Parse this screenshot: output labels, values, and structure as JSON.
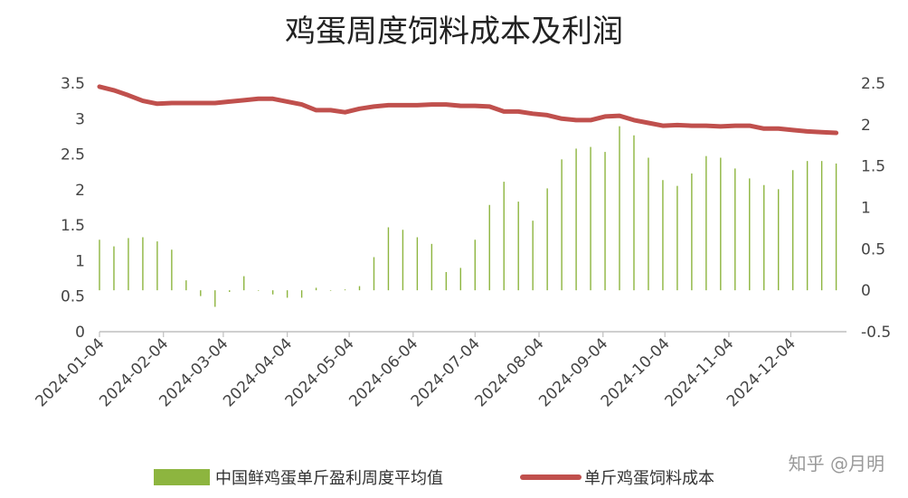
{
  "chart_data": {
    "type": "bar+line",
    "title": "鸡蛋周度饲料成本及利润",
    "x_tick_labels": [
      "2024-01-04",
      "2024-02-04",
      "2024-03-04",
      "2024-04-04",
      "2024-05-04",
      "2024-06-04",
      "2024-07-04",
      "2024-08-04",
      "2024-09-04",
      "2024-10-04",
      "2024-11-04",
      "2024-12-04"
    ],
    "left_axis": {
      "ticks": [
        "0",
        "0.5",
        "1",
        "1.5",
        "2",
        "2.5",
        "3",
        "3.5"
      ],
      "ylim": [
        0,
        3.5
      ]
    },
    "right_axis": {
      "ticks": [
        "-0.5",
        "0",
        "0.5",
        "1",
        "1.5",
        "2",
        "2.5"
      ],
      "ylim": [
        -0.5,
        2.5
      ]
    },
    "x": [
      "2024-01-04",
      "2024-01-11",
      "2024-01-18",
      "2024-01-25",
      "2024-02-01",
      "2024-02-08",
      "2024-02-15",
      "2024-02-22",
      "2024-02-29",
      "2024-03-07",
      "2024-03-14",
      "2024-03-21",
      "2024-03-28",
      "2024-04-04",
      "2024-04-11",
      "2024-04-18",
      "2024-04-25",
      "2024-05-02",
      "2024-05-09",
      "2024-05-16",
      "2024-05-23",
      "2024-05-30",
      "2024-06-06",
      "2024-06-13",
      "2024-06-20",
      "2024-06-27",
      "2024-07-04",
      "2024-07-11",
      "2024-07-18",
      "2024-07-25",
      "2024-08-01",
      "2024-08-08",
      "2024-08-15",
      "2024-08-22",
      "2024-08-29",
      "2024-09-05",
      "2024-09-12",
      "2024-09-19",
      "2024-09-26",
      "2024-10-03",
      "2024-10-10",
      "2024-10-17",
      "2024-10-24",
      "2024-10-31",
      "2024-11-07",
      "2024-11-14",
      "2024-11-21",
      "2024-11-28",
      "2024-12-05",
      "2024-12-12",
      "2024-12-19",
      "2024-12-26"
    ],
    "series": [
      {
        "name": "中国鲜鸡蛋单斤盈利周度平均值",
        "type": "bar",
        "axis": "right",
        "color": "#8db53f",
        "values": [
          0.61,
          0.53,
          0.63,
          0.64,
          0.59,
          0.49,
          0.12,
          -0.07,
          -0.2,
          -0.02,
          0.17,
          0.0,
          -0.05,
          -0.09,
          -0.09,
          0.03,
          0.0,
          0.01,
          0.05,
          0.4,
          0.76,
          0.73,
          0.64,
          0.56,
          0.22,
          0.27,
          0.61,
          1.03,
          1.31,
          1.07,
          0.84,
          1.23,
          1.58,
          1.71,
          1.73,
          1.67,
          1.98,
          1.87,
          1.6,
          1.33,
          1.26,
          1.41,
          1.62,
          1.6,
          1.47,
          1.35,
          1.27,
          1.22,
          1.45,
          1.56,
          1.56,
          1.53
        ]
      },
      {
        "name": "单斤鸡蛋饲料成本",
        "type": "line",
        "axis": "left",
        "color": "#c0504d",
        "values": [
          3.45,
          3.4,
          3.33,
          3.25,
          3.21,
          3.22,
          3.22,
          3.22,
          3.22,
          3.24,
          3.26,
          3.28,
          3.28,
          3.24,
          3.2,
          3.12,
          3.12,
          3.09,
          3.14,
          3.17,
          3.19,
          3.19,
          3.19,
          3.2,
          3.2,
          3.18,
          3.18,
          3.17,
          3.1,
          3.1,
          3.07,
          3.05,
          3.0,
          2.98,
          2.98,
          3.03,
          3.04,
          2.98,
          2.94,
          2.9,
          2.91,
          2.9,
          2.9,
          2.89,
          2.9,
          2.9,
          2.86,
          2.86,
          2.84,
          2.82,
          2.81,
          2.8
        ]
      }
    ],
    "legend_position": "bottom",
    "grid": false
  },
  "watermark": "知乎 @月明"
}
